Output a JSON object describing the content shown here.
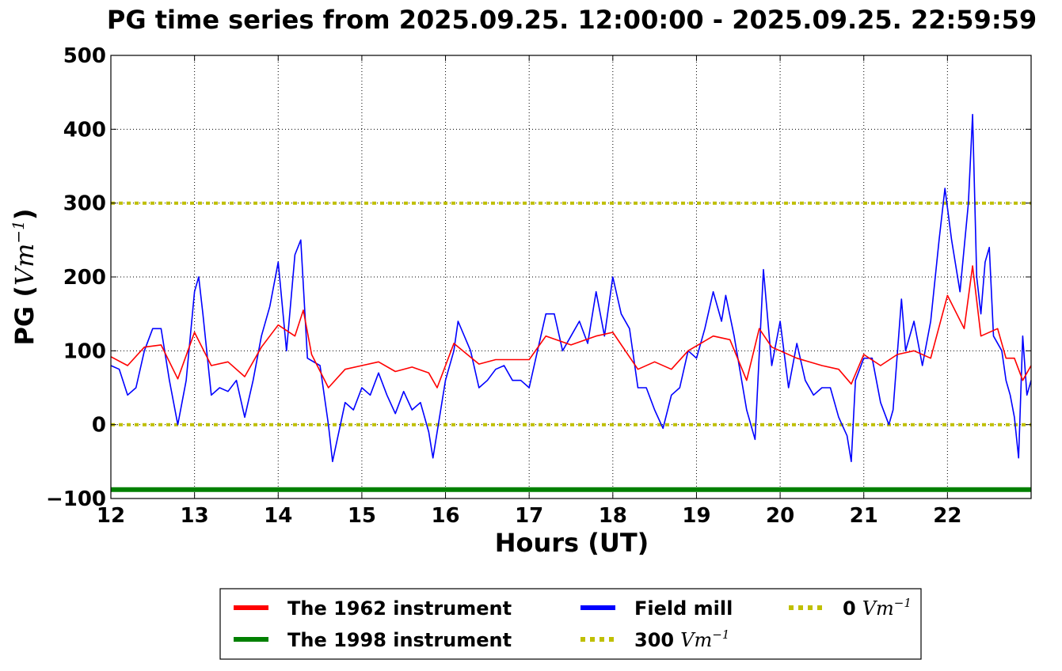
{
  "chart_data": {
    "type": "line",
    "title": "PG time series from 2025.09.25. 12:00:00 - 2025.09.25. 22:59:59",
    "xlabel": "Hours (UT)",
    "ylabel_prefix": "PG (",
    "ylabel_unit": "Vm",
    "ylabel_exp": "−1",
    "ylabel_suffix": ")",
    "xlim": [
      12,
      23
    ],
    "ylim": [
      -100,
      500
    ],
    "grid": true,
    "x_ticks": [
      12,
      13,
      14,
      15,
      16,
      17,
      18,
      19,
      20,
      21,
      22
    ],
    "x_tick_labels": [
      "12",
      "13",
      "14",
      "15",
      "16",
      "17",
      "18",
      "19",
      "20",
      "21",
      "22"
    ],
    "y_ticks": [
      -100,
      0,
      100,
      200,
      300,
      400,
      500
    ],
    "y_tick_labels": [
      "−100",
      "0",
      "100",
      "200",
      "300",
      "400",
      "500"
    ],
    "legend_position": "bottom-center, below chart",
    "series": [
      {
        "name": "The 1962 instrument",
        "color": "#ff0000",
        "style": "solid",
        "x": [
          12.0,
          12.2,
          12.4,
          12.6,
          12.8,
          13.0,
          13.2,
          13.4,
          13.6,
          13.8,
          14.0,
          14.2,
          14.3,
          14.4,
          14.6,
          14.8,
          15.0,
          15.2,
          15.4,
          15.6,
          15.8,
          15.9,
          16.1,
          16.4,
          16.6,
          16.8,
          17.0,
          17.2,
          17.5,
          17.8,
          18.0,
          18.3,
          18.5,
          18.7,
          18.9,
          19.2,
          19.4,
          19.6,
          19.75,
          19.9,
          20.2,
          20.5,
          20.7,
          20.85,
          21.0,
          21.2,
          21.4,
          21.6,
          21.8,
          22.0,
          22.2,
          22.3,
          22.4,
          22.6,
          22.7,
          22.8,
          22.9,
          23.0
        ],
        "y": [
          92,
          80,
          105,
          108,
          62,
          125,
          80,
          85,
          65,
          105,
          135,
          120,
          155,
          95,
          50,
          75,
          80,
          85,
          72,
          78,
          70,
          50,
          110,
          82,
          88,
          88,
          88,
          120,
          108,
          120,
          125,
          75,
          85,
          75,
          100,
          120,
          115,
          60,
          130,
          105,
          90,
          80,
          75,
          55,
          95,
          80,
          95,
          100,
          90,
          175,
          130,
          215,
          120,
          130,
          90,
          90,
          60,
          80
        ]
      },
      {
        "name": "The 1998 instrument",
        "color": "#008000",
        "style": "solid",
        "x": [
          12.0,
          23.0
        ],
        "y": [
          -88,
          -88
        ]
      },
      {
        "name": "Field mill",
        "color": "#0000ff",
        "style": "solid",
        "x": [
          12.0,
          12.1,
          12.2,
          12.3,
          12.4,
          12.5,
          12.6,
          12.7,
          12.8,
          12.9,
          13.0,
          13.05,
          13.1,
          13.2,
          13.3,
          13.4,
          13.5,
          13.6,
          13.7,
          13.8,
          13.9,
          14.0,
          14.1,
          14.2,
          14.27,
          14.35,
          14.5,
          14.6,
          14.65,
          14.8,
          14.9,
          15.0,
          15.1,
          15.2,
          15.3,
          15.4,
          15.5,
          15.6,
          15.7,
          15.8,
          15.85,
          16.0,
          16.1,
          16.15,
          16.3,
          16.4,
          16.5,
          16.6,
          16.7,
          16.8,
          16.9,
          17.0,
          17.1,
          17.2,
          17.3,
          17.4,
          17.5,
          17.6,
          17.7,
          17.8,
          17.9,
          18.0,
          18.1,
          18.2,
          18.3,
          18.4,
          18.5,
          18.6,
          18.7,
          18.8,
          18.9,
          19.0,
          19.1,
          19.2,
          19.3,
          19.35,
          19.45,
          19.6,
          19.7,
          19.8,
          19.9,
          20.0,
          20.1,
          20.2,
          20.3,
          20.4,
          20.5,
          20.6,
          20.7,
          20.8,
          20.85,
          20.9,
          21.0,
          21.1,
          21.2,
          21.3,
          21.35,
          21.45,
          21.5,
          21.6,
          21.7,
          21.8,
          21.9,
          21.97,
          22.05,
          22.15,
          22.25,
          22.3,
          22.35,
          22.4,
          22.45,
          22.5,
          22.55,
          22.65,
          22.7,
          22.75,
          22.8,
          22.85,
          22.9,
          22.95,
          23.0
        ],
        "y": [
          80,
          75,
          40,
          50,
          100,
          130,
          130,
          60,
          0,
          60,
          180,
          200,
          150,
          40,
          50,
          45,
          60,
          10,
          60,
          120,
          160,
          220,
          100,
          230,
          250,
          90,
          80,
          0,
          -50,
          30,
          20,
          50,
          40,
          70,
          40,
          15,
          45,
          20,
          30,
          -10,
          -45,
          60,
          100,
          140,
          100,
          50,
          60,
          75,
          80,
          60,
          60,
          50,
          100,
          150,
          150,
          100,
          120,
          140,
          110,
          180,
          120,
          200,
          150,
          130,
          50,
          50,
          20,
          -5,
          40,
          50,
          100,
          90,
          130,
          180,
          140,
          175,
          120,
          20,
          -20,
          210,
          80,
          140,
          50,
          110,
          60,
          40,
          50,
          50,
          10,
          -15,
          -50,
          60,
          90,
          90,
          30,
          0,
          20,
          170,
          100,
          140,
          80,
          140,
          250,
          320,
          250,
          180,
          300,
          420,
          200,
          150,
          220,
          240,
          120,
          100,
          60,
          40,
          10,
          -45,
          120,
          40,
          60
        ]
      },
      {
        "name": "300",
        "unit": "Vm",
        "exp": "−1",
        "color": "#bfbf00",
        "style": "dotted",
        "x": [
          12.0,
          23.0
        ],
        "y": [
          300,
          300
        ]
      },
      {
        "name": "0",
        "unit": "Vm",
        "exp": "−1",
        "color": "#bfbf00",
        "style": "dotted",
        "x": [
          12.0,
          23.0
        ],
        "y": [
          0,
          0
        ]
      }
    ]
  }
}
